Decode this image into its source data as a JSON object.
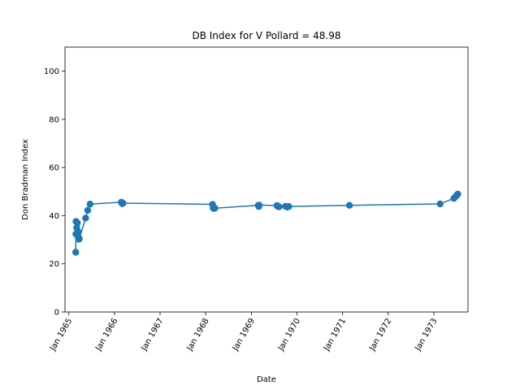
{
  "chart_data": {
    "type": "line",
    "title": "DB Index for V Pollard = 48.98",
    "xlabel": "Date",
    "ylabel": "Don Bradman Index",
    "ylim": [
      0,
      110
    ],
    "yticks": [
      0,
      20,
      40,
      60,
      80,
      100
    ],
    "xlim": [
      "1964-12-01",
      "1973-10-01"
    ],
    "xticks": [
      {
        "date": "1965-01-01",
        "label": "Jan 1965"
      },
      {
        "date": "1966-01-01",
        "label": "Jan 1966"
      },
      {
        "date": "1967-01-01",
        "label": "Jan 1967"
      },
      {
        "date": "1968-01-01",
        "label": "Jan 1968"
      },
      {
        "date": "1969-01-01",
        "label": "Jan 1969"
      },
      {
        "date": "1970-01-01",
        "label": "Jan 1970"
      },
      {
        "date": "1971-01-01",
        "label": "Jan 1971"
      },
      {
        "date": "1972-01-01",
        "label": "Jan 1972"
      },
      {
        "date": "1973-01-01",
        "label": "Jan 1973"
      }
    ],
    "grid": false,
    "legend": false,
    "color": "#1f77b4",
    "series": [
      {
        "points": [
          {
            "x": "1965-02-25",
            "y": 24.8
          },
          {
            "x": "1965-02-26",
            "y": 32.4
          },
          {
            "x": "1965-02-27",
            "y": 37.6
          },
          {
            "x": "1965-03-05",
            "y": 35.0
          },
          {
            "x": "1965-03-10",
            "y": 37.0
          },
          {
            "x": "1965-03-15",
            "y": 33.5
          },
          {
            "x": "1965-03-18",
            "y": 31.0
          },
          {
            "x": "1965-03-22",
            "y": 30.2
          },
          {
            "x": "1965-03-26",
            "y": 30.5
          },
          {
            "x": "1965-05-15",
            "y": 39.0
          },
          {
            "x": "1965-06-01",
            "y": 42.2
          },
          {
            "x": "1965-06-20",
            "y": 44.8
          },
          {
            "x": "1966-02-25",
            "y": 45.6
          },
          {
            "x": "1966-03-01",
            "y": 45.3
          },
          {
            "x": "1966-03-05",
            "y": 45.0
          },
          {
            "x": "1966-03-10",
            "y": 45.2
          },
          {
            "x": "1968-02-25",
            "y": 44.7
          },
          {
            "x": "1968-03-01",
            "y": 43.2
          },
          {
            "x": "1968-03-05",
            "y": 43.0
          },
          {
            "x": "1968-03-15",
            "y": 43.1
          },
          {
            "x": "1969-02-25",
            "y": 44.3
          },
          {
            "x": "1969-03-01",
            "y": 43.8
          },
          {
            "x": "1969-03-05",
            "y": 44.4
          },
          {
            "x": "1969-07-25",
            "y": 44.2
          },
          {
            "x": "1969-08-01",
            "y": 43.8
          },
          {
            "x": "1969-08-10",
            "y": 43.7
          },
          {
            "x": "1969-10-01",
            "y": 43.9
          },
          {
            "x": "1969-10-15",
            "y": 43.6
          },
          {
            "x": "1969-10-28",
            "y": 43.8
          },
          {
            "x": "1971-02-25",
            "y": 44.3
          },
          {
            "x": "1973-02-20",
            "y": 44.9
          },
          {
            "x": "1973-06-10",
            "y": 47.2
          },
          {
            "x": "1973-06-25",
            "y": 48.0
          },
          {
            "x": "1973-07-05",
            "y": 48.6
          },
          {
            "x": "1973-07-12",
            "y": 48.98
          }
        ]
      }
    ]
  }
}
